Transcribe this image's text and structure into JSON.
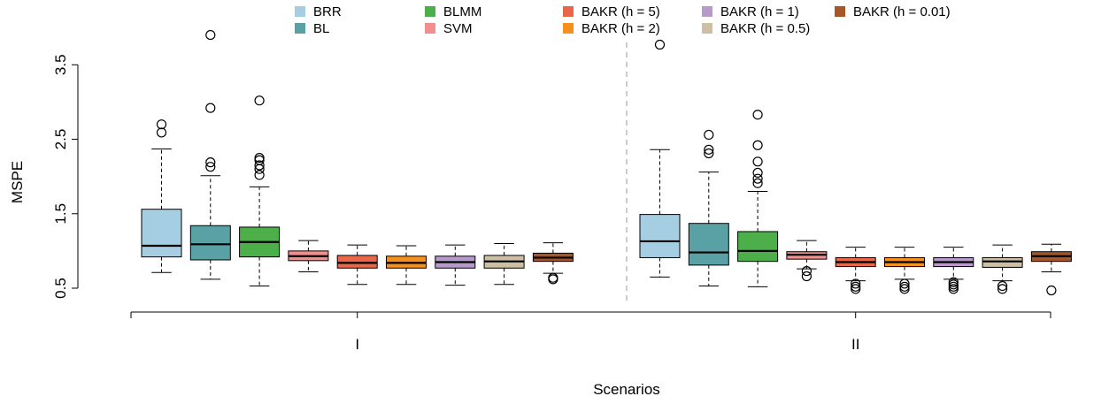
{
  "chart_data": {
    "type": "boxplot",
    "title": "",
    "xlabel": "Scenarios",
    "ylabel": "MSPE",
    "ylim": [
      0.5,
      3.8
    ],
    "yticks": [
      "0.5",
      "1.5",
      "2.5",
      "3.5"
    ],
    "grid": false,
    "legend_position": "top",
    "categories": [
      "I",
      "II"
    ],
    "series": [
      {
        "name": "BRR",
        "color": "#a6cee3",
        "boxes": [
          {
            "min": 0.71,
            "q1": 0.92,
            "median": 1.07,
            "q3": 1.56,
            "max": 2.37,
            "outliers": [
              2.59,
              2.7
            ]
          },
          {
            "min": 0.65,
            "q1": 0.91,
            "median": 1.13,
            "q3": 1.49,
            "max": 2.36,
            "outliers": [
              3.77
            ]
          }
        ]
      },
      {
        "name": "BL",
        "color": "#5aa1a6",
        "boxes": [
          {
            "min": 0.62,
            "q1": 0.88,
            "median": 1.09,
            "q3": 1.34,
            "max": 2.01,
            "outliers": [
              2.13,
              2.19,
              2.92,
              3.9
            ]
          },
          {
            "min": 0.53,
            "q1": 0.81,
            "median": 0.98,
            "q3": 1.37,
            "max": 2.06,
            "outliers": [
              2.31,
              2.36,
              2.56
            ]
          }
        ]
      },
      {
        "name": "BLMM",
        "color": "#4daf4a",
        "boxes": [
          {
            "min": 0.53,
            "q1": 0.92,
            "median": 1.12,
            "q3": 1.32,
            "max": 1.86,
            "outliers": [
              2.02,
              2.1,
              2.15,
              2.22,
              2.25,
              3.02
            ]
          },
          {
            "min": 0.52,
            "q1": 0.86,
            "median": 1.0,
            "q3": 1.26,
            "max": 1.8,
            "outliers": [
              1.91,
              1.97,
              2.05,
              2.2,
              2.42,
              2.83
            ]
          }
        ]
      },
      {
        "name": "SVM",
        "color": "#f28e8e",
        "boxes": [
          {
            "min": 0.72,
            "q1": 0.87,
            "median": 0.93,
            "q3": 1.0,
            "max": 1.14,
            "outliers": []
          },
          {
            "min": 0.76,
            "q1": 0.89,
            "median": 0.95,
            "q3": 0.99,
            "max": 1.14,
            "outliers": [
              0.66,
              0.73
            ]
          }
        ]
      },
      {
        "name": "BAKR (h = 5)",
        "color": "#e8674a",
        "boxes": [
          {
            "min": 0.55,
            "q1": 0.77,
            "median": 0.84,
            "q3": 0.94,
            "max": 1.08,
            "outliers": []
          },
          {
            "min": 0.6,
            "q1": 0.79,
            "median": 0.85,
            "q3": 0.91,
            "max": 1.05,
            "outliers": [
              0.49,
              0.52,
              0.56
            ]
          }
        ]
      },
      {
        "name": "BAKR (h = 2)",
        "color": "#f5901e",
        "boxes": [
          {
            "min": 0.55,
            "q1": 0.77,
            "median": 0.84,
            "q3": 0.93,
            "max": 1.07,
            "outliers": []
          },
          {
            "min": 0.62,
            "q1": 0.79,
            "median": 0.85,
            "q3": 0.91,
            "max": 1.05,
            "outliers": [
              0.49,
              0.52,
              0.56
            ]
          }
        ]
      },
      {
        "name": "BAKR (h = 1)",
        "color": "#b69ac9",
        "boxes": [
          {
            "min": 0.54,
            "q1": 0.77,
            "median": 0.85,
            "q3": 0.93,
            "max": 1.08,
            "outliers": []
          },
          {
            "min": 0.62,
            "q1": 0.79,
            "median": 0.85,
            "q3": 0.91,
            "max": 1.05,
            "outliers": [
              0.49,
              0.52,
              0.55,
              0.58
            ]
          }
        ]
      },
      {
        "name": "BAKR (h = 0.5)",
        "color": "#cdbfa3",
        "boxes": [
          {
            "min": 0.55,
            "q1": 0.77,
            "median": 0.86,
            "q3": 0.94,
            "max": 1.1,
            "outliers": []
          },
          {
            "min": 0.6,
            "q1": 0.78,
            "median": 0.86,
            "q3": 0.91,
            "max": 1.08,
            "outliers": [
              0.49,
              0.53
            ]
          }
        ]
      },
      {
        "name": "BAKR (h = 0.01)",
        "color": "#a65628",
        "boxes": [
          {
            "min": 0.7,
            "q1": 0.86,
            "median": 0.91,
            "q3": 0.97,
            "max": 1.11,
            "outliers": [
              0.62,
              0.64
            ]
          },
          {
            "min": 0.72,
            "q1": 0.86,
            "median": 0.93,
            "q3": 0.99,
            "max": 1.09,
            "outliers": [
              0.47
            ]
          }
        ]
      }
    ]
  }
}
